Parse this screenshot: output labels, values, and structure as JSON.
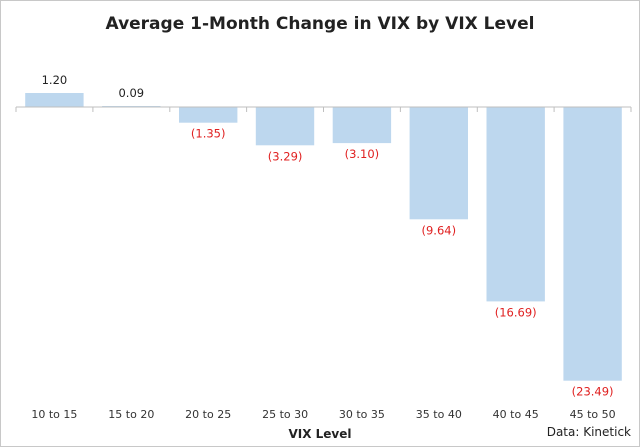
{
  "chart_data": {
    "type": "bar",
    "title": "Average 1-Month Change in VIX by VIX Level",
    "xlabel": "VIX Level",
    "ylabel": "",
    "categories": [
      "10 to 15",
      "15 to 20",
      "20 to 25",
      "25 to 30",
      "30 to 35",
      "35 to 40",
      "40 to 45",
      "45 to 50"
    ],
    "values": [
      1.2,
      0.09,
      -1.35,
      -3.29,
      -3.1,
      -9.64,
      -16.69,
      -23.49
    ],
    "data_labels": [
      "1.20",
      "0.09",
      "(1.35)",
      "(3.29)",
      "(3.10)",
      "(9.64)",
      "(16.69)",
      "(23.49)"
    ],
    "ylim": [
      -25,
      2.5
    ],
    "grid": false,
    "legend": "none",
    "source": "Data: Kinetick",
    "colors": {
      "bar": "#bdd7ee",
      "positive_label": "#222222",
      "negative_label": "#e02020",
      "axis": "#bfbfbf"
    }
  }
}
